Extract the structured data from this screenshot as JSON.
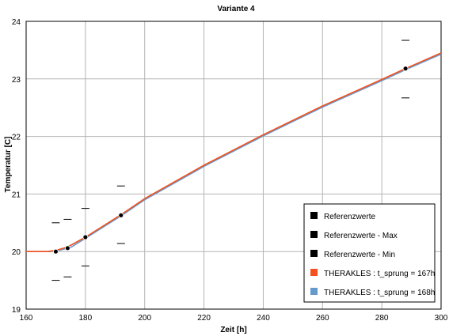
{
  "chart_data": {
    "type": "line",
    "title": "Variante 4",
    "xlabel": "Zeit [h]",
    "ylabel": "Temperatur [C]",
    "xlim": [
      160,
      300
    ],
    "ylim": [
      19,
      24
    ],
    "xticks": [
      160,
      180,
      200,
      220,
      240,
      260,
      280,
      300
    ],
    "yticks": [
      19,
      20,
      21,
      22,
      23,
      24
    ],
    "grid": true,
    "legend_position": "bottom-right",
    "colors": {
      "referenzwerte": "#000000",
      "sprung_167": "#f4511e",
      "sprung_168": "#6699cc"
    },
    "series": [
      {
        "name": "Referenzwerte",
        "kind": "points",
        "x": [
          170,
          174,
          180,
          192,
          288
        ],
        "y": [
          20.0,
          20.06,
          20.25,
          20.63,
          23.18
        ]
      },
      {
        "name": "Referenzwerte - Max",
        "kind": "dash",
        "x": [
          170,
          174,
          180,
          192,
          288
        ],
        "y": [
          20.5,
          20.56,
          20.75,
          21.14,
          23.67
        ]
      },
      {
        "name": "Referenzwerte - Min",
        "kind": "dash",
        "x": [
          170,
          174,
          180,
          192,
          288
        ],
        "y": [
          19.5,
          19.56,
          19.75,
          20.14,
          22.67
        ]
      },
      {
        "name": "THERAKLES : t_sprung = 167h",
        "kind": "line",
        "x": [
          160,
          167,
          170,
          174,
          180,
          192,
          200,
          220,
          240,
          260,
          280,
          288,
          300
        ],
        "y": [
          20.0,
          20.0,
          20.02,
          20.08,
          20.25,
          20.64,
          20.92,
          21.5,
          22.03,
          22.53,
          22.99,
          23.18,
          23.45
        ]
      },
      {
        "name": "THERAKLES : t_sprung = 168h",
        "kind": "line",
        "x": [
          160,
          168,
          171,
          175,
          180,
          192,
          200,
          220,
          240,
          260,
          280,
          288,
          300
        ],
        "y": [
          20.0,
          20.0,
          20.02,
          20.07,
          20.23,
          20.62,
          20.9,
          21.48,
          22.01,
          22.51,
          22.97,
          23.16,
          23.43
        ]
      }
    ]
  }
}
